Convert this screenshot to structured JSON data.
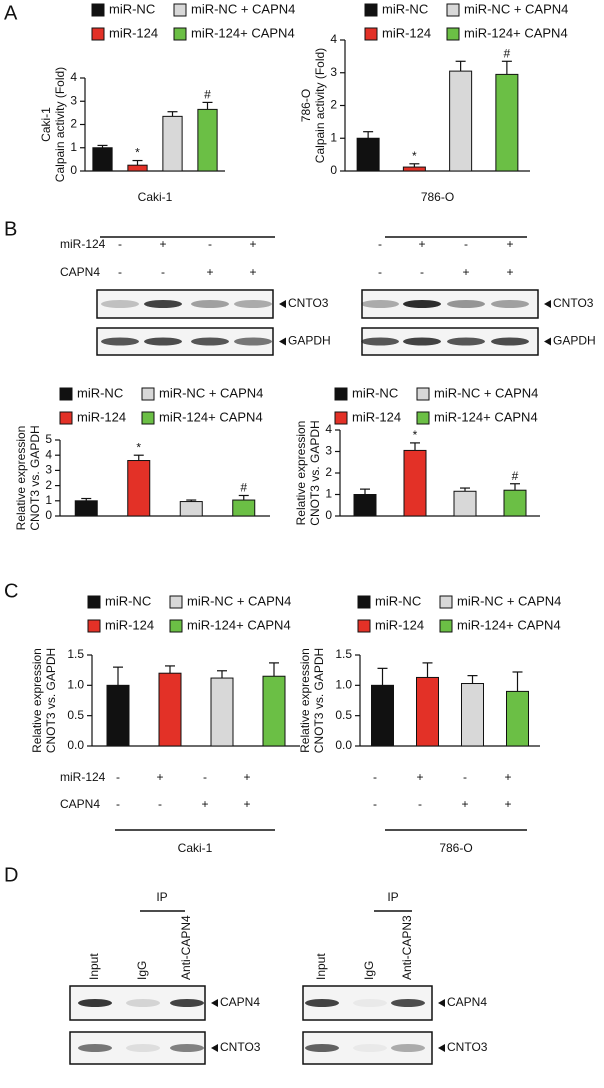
{
  "panel_labels": [
    "A",
    "B",
    "C",
    "D"
  ],
  "chart_data": [
    {
      "type": "bar",
      "categories": [
        "miR-NC",
        "miR-124",
        "miR-NC + CAPN4",
        "miR-124+ CAPN4"
      ],
      "colors": [
        "#111111",
        "#e33127",
        "#d8d8d8",
        "#6bbf45"
      ],
      "values": [
        1.0,
        0.25,
        2.35,
        2.65
      ],
      "errors": [
        0.1,
        0.2,
        0.2,
        0.3
      ],
      "value_annotations": [
        null,
        "*",
        null,
        "#"
      ],
      "ylim": [
        0,
        4
      ],
      "yticks": [
        0,
        1,
        2,
        3,
        4
      ],
      "y_label": [
        "Caki-1",
        "Calpain activity (Fold)"
      ],
      "x_label": "Caki-1"
    },
    {
      "type": "bar",
      "categories": [
        "miR-NC",
        "miR-124",
        "miR-NC + CAPN4",
        "miR-124+ CAPN4"
      ],
      "colors": [
        "#111111",
        "#e33127",
        "#d8d8d8",
        "#6bbf45"
      ],
      "values": [
        1.0,
        0.12,
        3.05,
        2.95
      ],
      "errors": [
        0.2,
        0.1,
        0.3,
        0.4
      ],
      "value_annotations": [
        null,
        "*",
        null,
        "#"
      ],
      "ylim": [
        0,
        4
      ],
      "yticks": [
        0,
        1,
        2,
        3,
        4
      ],
      "y_label": [
        "786-O",
        "Calpain activity (Fold)"
      ],
      "x_label": "786-O"
    },
    {
      "type": "bar",
      "categories": [
        "miR-NC",
        "miR-124",
        "miR-NC + CAPN4",
        "miR-124+ CAPN4"
      ],
      "colors": [
        "#111111",
        "#e33127",
        "#d8d8d8",
        "#6bbf45"
      ],
      "values": [
        1.0,
        3.65,
        0.95,
        1.05
      ],
      "errors": [
        0.15,
        0.35,
        0.1,
        0.3
      ],
      "value_annotations": [
        null,
        "*",
        null,
        "#"
      ],
      "ylim": [
        0,
        5
      ],
      "yticks": [
        0,
        1,
        2,
        3,
        4,
        5
      ],
      "y_label": [
        "Relative expression",
        "CNOT3 vs. GAPDH"
      ]
    },
    {
      "type": "bar",
      "categories": [
        "miR-NC",
        "miR-124",
        "miR-NC + CAPN4",
        "miR-124+ CAPN4"
      ],
      "colors": [
        "#111111",
        "#e33127",
        "#d8d8d8",
        "#6bbf45"
      ],
      "values": [
        1.0,
        3.05,
        1.15,
        1.2
      ],
      "errors": [
        0.25,
        0.35,
        0.15,
        0.3
      ],
      "value_annotations": [
        null,
        "*",
        null,
        "#"
      ],
      "ylim": [
        0,
        4
      ],
      "yticks": [
        0,
        1,
        2,
        3,
        4
      ],
      "y_label": [
        "Relative expression",
        "CNOT3 vs. GAPDH"
      ]
    },
    {
      "type": "bar",
      "categories": [
        "miR-NC",
        "miR-124",
        "miR-NC + CAPN4",
        "miR-124+ CAPN4"
      ],
      "colors": [
        "#111111",
        "#e33127",
        "#d8d8d8",
        "#6bbf45"
      ],
      "values": [
        1.0,
        1.2,
        1.12,
        1.15
      ],
      "errors": [
        0.3,
        0.12,
        0.12,
        0.22
      ],
      "value_annotations": [
        null,
        null,
        null,
        null
      ],
      "ylim": [
        0,
        1.5
      ],
      "yticks": [
        {
          "value": 0,
          "label": "0.0"
        },
        0.5,
        {
          "value": 1,
          "label": "1.0"
        },
        1.5
      ],
      "y_label": [
        "Relative expression",
        "CNOT3 vs. GAPDH"
      ]
    },
    {
      "type": "bar",
      "categories": [
        "miR-NC",
        "miR-124",
        "miR-NC + CAPN4",
        "miR-124+ CAPN4"
      ],
      "colors": [
        "#111111",
        "#e33127",
        "#d8d8d8",
        "#6bbf45"
      ],
      "values": [
        1.0,
        1.13,
        1.03,
        0.9
      ],
      "errors": [
        0.28,
        0.24,
        0.13,
        0.32
      ],
      "value_annotations": [
        null,
        null,
        null,
        null
      ],
      "ylim": [
        0,
        1.5
      ],
      "yticks": [
        {
          "value": 0,
          "label": "0.0"
        },
        0.5,
        {
          "value": 1,
          "label": "1.0"
        },
        1.5
      ],
      "y_label": [
        "Relative expression",
        "CNOT3 vs. GAPDH"
      ]
    }
  ],
  "treatments": [
    {
      "rows": [
        {
          "label": "miR-124",
          "signs": [
            "-",
            "+",
            "-",
            "+"
          ]
        },
        {
          "label": "CAPN4",
          "signs": [
            "-",
            "-",
            "+",
            "+"
          ]
        }
      ],
      "bands": [
        "CNTO3",
        "GAPDH"
      ]
    },
    {
      "rows": [
        {
          "signs": [
            "-",
            "+",
            "-",
            "+"
          ]
        },
        {
          "signs": [
            "-",
            "-",
            "+",
            "+"
          ]
        }
      ],
      "bands": [
        "CNTO3",
        "GAPDH"
      ]
    },
    {
      "rows": [
        {
          "label": "miR-124",
          "signs": [
            "-",
            "+",
            "-",
            "+"
          ]
        },
        {
          "label": "CAPN4",
          "signs": [
            "-",
            "-",
            "+",
            "+"
          ]
        }
      ],
      "group": "Caki-1"
    },
    {
      "rows": [
        {
          "signs": [
            "-",
            "+",
            "-",
            "+"
          ]
        },
        {
          "signs": [
            "-",
            "-",
            "+",
            "+"
          ]
        }
      ],
      "group": "786-O"
    }
  ],
  "ip": [
    {
      "label": "IP",
      "lanes": [
        "Input",
        "IgG",
        "Anti-CAPN4"
      ],
      "bands": [
        "CAPN4",
        "CNTO3"
      ]
    },
    {
      "label": "IP",
      "lanes": [
        "Input",
        "IgG",
        "Anti-CAPN3"
      ],
      "bands": [
        "CAPN4",
        "CNTO3"
      ]
    }
  ]
}
